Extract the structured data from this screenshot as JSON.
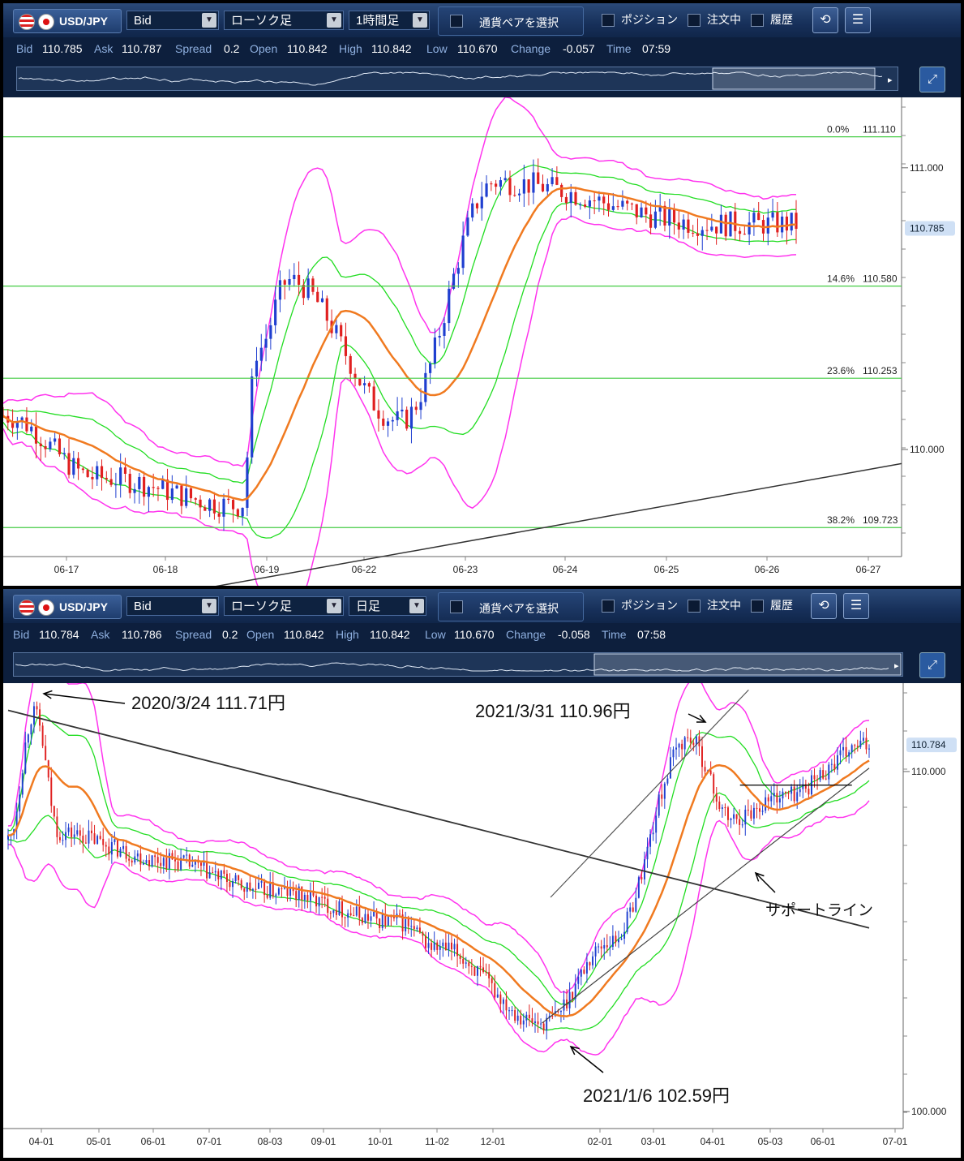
{
  "panels": [
    {
      "symbol": "USD/JPY",
      "price_type": "Bid",
      "chart_style": "ローソク足",
      "timeframe": "1時間足",
      "pair_select_label": "通貨ペアを選択",
      "checkboxes": [
        "ポジション",
        "注文中",
        "履歴"
      ],
      "quote": {
        "bid_label": "Bid",
        "bid": "110.785",
        "ask_label": "Ask",
        "ask": "110.787",
        "spread_label": "Spread",
        "spread": "0.2",
        "open_label": "Open",
        "open": "110.842",
        "high_label": "High",
        "high": "110.842",
        "low_label": "Low",
        "low": "110.670",
        "change_label": "Change",
        "change": "-0.057",
        "time_label": "Time",
        "time": "07:59"
      }
    },
    {
      "symbol": "USD/JPY",
      "price_type": "Bid",
      "chart_style": "ローソク足",
      "timeframe": "日足",
      "pair_select_label": "通貨ペアを選択",
      "checkboxes": [
        "ポジション",
        "注文中",
        "履歴"
      ],
      "quote": {
        "bid_label": "Bid",
        "bid": "110.784",
        "ask_label": "Ask",
        "ask": "110.786",
        "spread_label": "Spread",
        "spread": "0.2",
        "open_label": "Open",
        "open": "110.842",
        "high_label": "High",
        "high": "110.842",
        "low_label": "Low",
        "low": "110.670",
        "change_label": "Change",
        "change": "-0.058",
        "time_label": "Time",
        "time": "07:58"
      }
    }
  ],
  "colors": {
    "bull": "#1f3fd0",
    "bear": "#e02020",
    "ma": "#f07a20",
    "band_inner": "#22dd22",
    "band_outer": "#ff33ee",
    "fib": "#44cc44",
    "trend": "#333333"
  },
  "chart_data": [
    {
      "type": "candlestick",
      "timeframe": "1時間足",
      "x_ticks": [
        "06-17",
        "06-18",
        "06-19",
        "06-22",
        "06-23",
        "06-24",
        "06-25",
        "06-26",
        "06-27"
      ],
      "y_ticks": [
        "111.000",
        "110.000"
      ],
      "ylim": [
        109.62,
        111.25
      ],
      "current_price": "110.785",
      "fibonacci": [
        {
          "label": "0.0%",
          "price": "111.110"
        },
        {
          "label": "14.6%",
          "price": "110.580"
        },
        {
          "label": "23.6%",
          "price": "110.253"
        },
        {
          "label": "38.2%",
          "price": "109.723"
        }
      ],
      "anchors": [
        {
          "t": 0,
          "p": 110.12
        },
        {
          "t": 0.12,
          "p": 109.9
        },
        {
          "t": 0.3,
          "p": 109.8
        },
        {
          "t": 0.32,
          "p": 110.35
        },
        {
          "t": 0.36,
          "p": 110.6
        },
        {
          "t": 0.5,
          "p": 110.1
        },
        {
          "t": 0.62,
          "p": 110.95
        },
        {
          "t": 0.9,
          "p": 110.8
        },
        {
          "t": 1.0,
          "p": 110.8
        }
      ],
      "trendline": [
        {
          "t": 0.2,
          "p": 109.48
        },
        {
          "t": 1.0,
          "p": 109.95
        }
      ]
    },
    {
      "type": "candlestick",
      "timeframe": "日足",
      "x_ticks": [
        "04-01",
        "05-01",
        "06-01",
        "07-01",
        "08-03",
        "09-01",
        "10-01",
        "11-02",
        "12-01",
        "02-01",
        "03-01",
        "04-01",
        "05-03",
        "06-01",
        "07-01"
      ],
      "y_ticks": [
        "110.000",
        "100.000"
      ],
      "ylim": [
        99.5,
        112.6
      ],
      "current_price": "110.784",
      "annotations": [
        {
          "text": "2020/3/24  111.71円"
        },
        {
          "text": "2021/3/31  110.96円"
        },
        {
          "text": "2021/1/6  102.59円"
        },
        {
          "text": "サポートライン"
        }
      ],
      "anchors": [
        {
          "t": 0,
          "p": 108.0
        },
        {
          "t": 0.03,
          "p": 111.71
        },
        {
          "t": 0.06,
          "p": 108.2
        },
        {
          "t": 0.18,
          "p": 107.4
        },
        {
          "t": 0.3,
          "p": 106.5
        },
        {
          "t": 0.45,
          "p": 105.6
        },
        {
          "t": 0.5,
          "p": 104.8
        },
        {
          "t": 0.62,
          "p": 102.59
        },
        {
          "t": 0.7,
          "p": 105.0
        },
        {
          "t": 0.79,
          "p": 110.96
        },
        {
          "t": 0.84,
          "p": 108.6
        },
        {
          "t": 0.9,
          "p": 109.3
        },
        {
          "t": 1.0,
          "p": 110.78
        }
      ],
      "trendlines": [
        {
          "name": "resistance",
          "a": {
            "t": 0.0,
            "p": 111.8
          },
          "b": {
            "t": 1.0,
            "p": 105.4
          }
        },
        {
          "name": "channel-upper",
          "a": {
            "t": 0.63,
            "p": 106.3
          },
          "b": {
            "t": 0.86,
            "p": 112.4
          }
        },
        {
          "name": "support",
          "a": {
            "t": 0.62,
            "p": 102.6
          },
          "b": {
            "t": 1.0,
            "p": 110.1
          }
        },
        {
          "name": "horizontal",
          "a": {
            "t": 0.85,
            "p": 109.6
          },
          "b": {
            "t": 0.98,
            "p": 109.6
          }
        }
      ]
    }
  ]
}
